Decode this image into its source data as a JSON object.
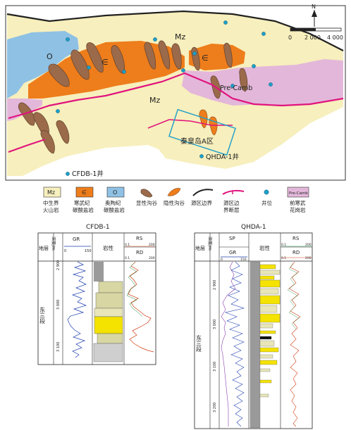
{
  "map": {
    "labels": {
      "mz_top": "Mz",
      "mz_mid": "Mz",
      "o": "O",
      "cambrian_a": "∈",
      "cambrian_b": "∈",
      "precamb": "Pre-Camb",
      "area": "秦皇岛A区",
      "well_qhda": "QHDA-1井",
      "well_cfdb": "CFDB-1井"
    },
    "north": "N",
    "scale_ticks": [
      "0",
      "2 000",
      "4 000"
    ]
  },
  "legend": [
    {
      "swatch_text": "Mz",
      "line1": "中生界",
      "line2": "火山岩",
      "icon": "mz-swatch"
    },
    {
      "swatch_text": "∈",
      "line1": "寒武纪",
      "line2": "碳酸盐岩",
      "icon": "cambrian-swatch"
    },
    {
      "swatch_text": "O",
      "line1": "奥陶纪",
      "line2": "碳酸盐岩",
      "icon": "ordovician-swatch"
    },
    {
      "swatch_text": "",
      "line1": "显性沟谷",
      "line2": "",
      "icon": "visible-valley-icon"
    },
    {
      "swatch_text": "",
      "line1": "隐性沟谷",
      "line2": "",
      "icon": "hidden-valley-icon"
    },
    {
      "swatch_text": "",
      "line1": "源区边界",
      "line2": "",
      "icon": "source-boundary-icon"
    },
    {
      "swatch_text": "",
      "line1": "源区边",
      "line2": "界断层",
      "icon": "boundary-fault-icon"
    },
    {
      "swatch_text": "",
      "line1": "井位",
      "line2": "",
      "icon": "well-icon"
    },
    {
      "swatch_text": "Pre-Camb",
      "line1": "前寒武",
      "line2": "花岗岩",
      "icon": "precamb-swatch"
    }
  ],
  "logs": {
    "cfdb": {
      "title": "CFDB-1",
      "h_layer": "地层",
      "h_depth": "深度/m",
      "h_gr": "GR",
      "h_gr_min": "0",
      "h_gr_max": "150",
      "h_lith": "岩性",
      "h_rs": "RS",
      "h_rd": "RD",
      "h_res_min": "0.1",
      "h_res_max": "200",
      "layer": "东三段",
      "depths": [
        "2 900",
        "3 000",
        "3 100"
      ]
    },
    "qhda": {
      "title": "QHDA-1",
      "h_layer": "地层",
      "h_depth": "深度/m",
      "h_sp": "SP",
      "h_gr": "GR",
      "h_gr_min": "0",
      "h_gr_max": "150",
      "h_lith": "岩性",
      "h_rs": "RS",
      "h_rd": "RD",
      "h_res_min": "0.1",
      "h_res_max": "200",
      "layer": "东三段",
      "depths": [
        "2 900",
        "3 000",
        "3 100",
        "3 200"
      ]
    }
  },
  "colors": {
    "mz": "#f7efbd",
    "cambrian": "#ee7d1b",
    "ordovician": "#8fc1e4",
    "precamb": "#e3b7da",
    "valley": "#9a6a4a",
    "fault": "#e0147e",
    "well": "#1e9fc9"
  }
}
